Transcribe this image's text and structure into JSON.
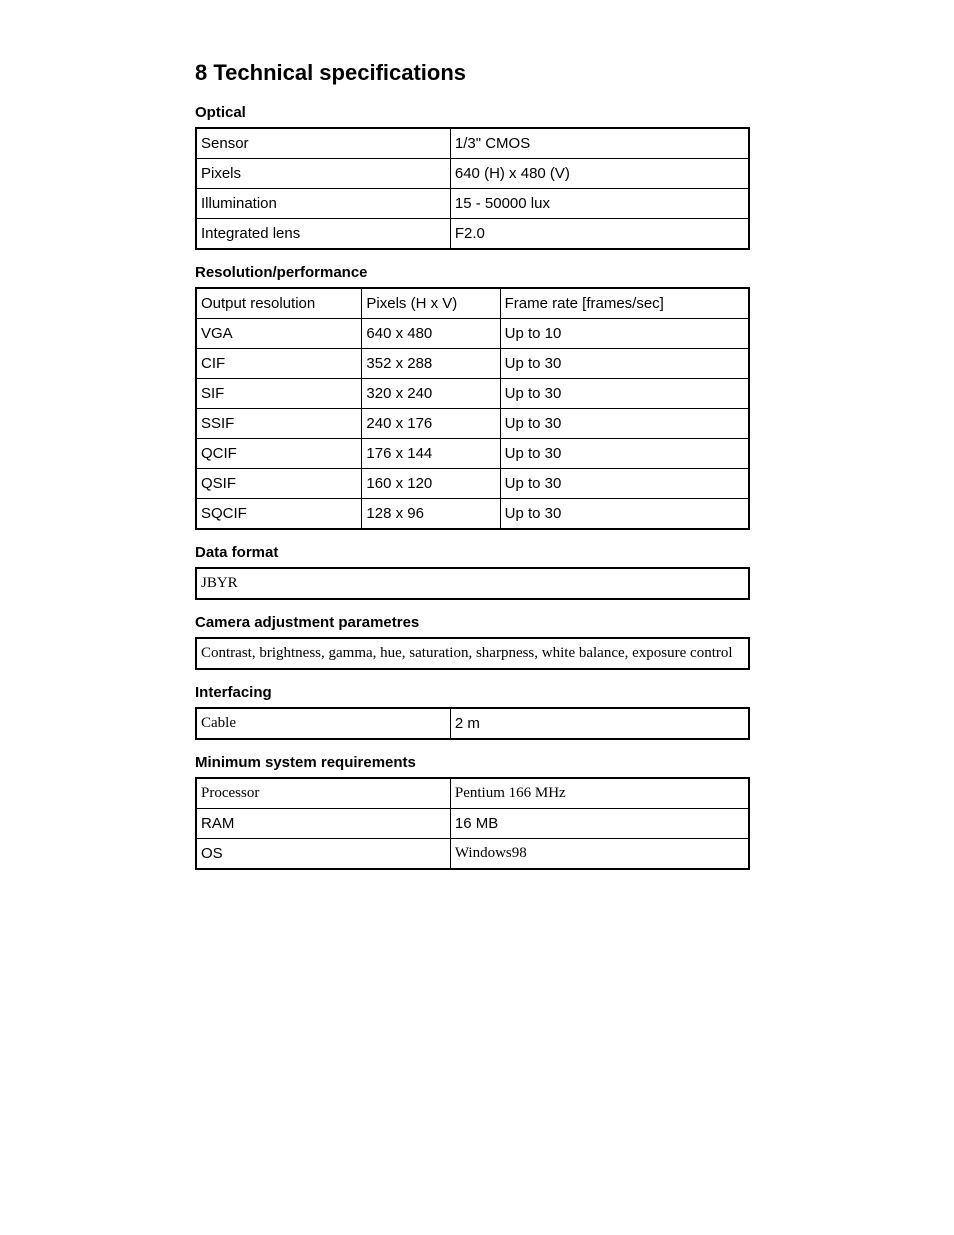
{
  "title": "8 Technical specifications",
  "sections": {
    "optical": {
      "heading": "Optical",
      "rows": [
        {
          "label": "Sensor",
          "value": "1/3\" CMOS"
        },
        {
          "label": "Pixels",
          "value": "640 (H) x 480 (V)"
        },
        {
          "label": "Illumination",
          "value": "15 - 50000 lux"
        },
        {
          "label": "Integrated lens",
          "value": "F2.0"
        }
      ]
    },
    "resolution": {
      "heading": "Resolution/performance",
      "header": {
        "c1": "Output resolution",
        "c2": "Pixels (H x V)",
        "c3": "Frame rate [frames/sec]"
      },
      "rows": [
        {
          "c1": "VGA",
          "c2": "640 x 480",
          "c3": "Up to 10"
        },
        {
          "c1": "CIF",
          "c2": "352 x 288",
          "c3": "Up to 30"
        },
        {
          "c1": "SIF",
          "c2": "320 x 240",
          "c3": "Up to 30"
        },
        {
          "c1": "SSIF",
          "c2": "240 x 176",
          "c3": "Up to 30"
        },
        {
          "c1": "QCIF",
          "c2": "176 x 144",
          "c3": "Up to 30"
        },
        {
          "c1": "QSIF",
          "c2": "160 x 120",
          "c3": "Up to 30"
        },
        {
          "c1": "SQCIF",
          "c2": "128 x 96",
          "c3": "Up to 30"
        }
      ]
    },
    "dataformat": {
      "heading": "Data format",
      "value": "JBYR"
    },
    "camera_adjust": {
      "heading": "Camera adjustment parametres",
      "value": "Contrast, brightness, gamma, hue, saturation, sharpness, white balance, exposure control"
    },
    "interfacing": {
      "heading": "Interfacing",
      "rows": [
        {
          "label": "Cable",
          "value": "2 m"
        }
      ]
    },
    "minsys": {
      "heading": "Minimum system requirements",
      "rows": [
        {
          "label": "Processor",
          "value": "Pentium 166 MHz"
        },
        {
          "label": "RAM",
          "value": "16 MB"
        },
        {
          "label": "OS",
          "value": "Windows98"
        }
      ]
    }
  }
}
